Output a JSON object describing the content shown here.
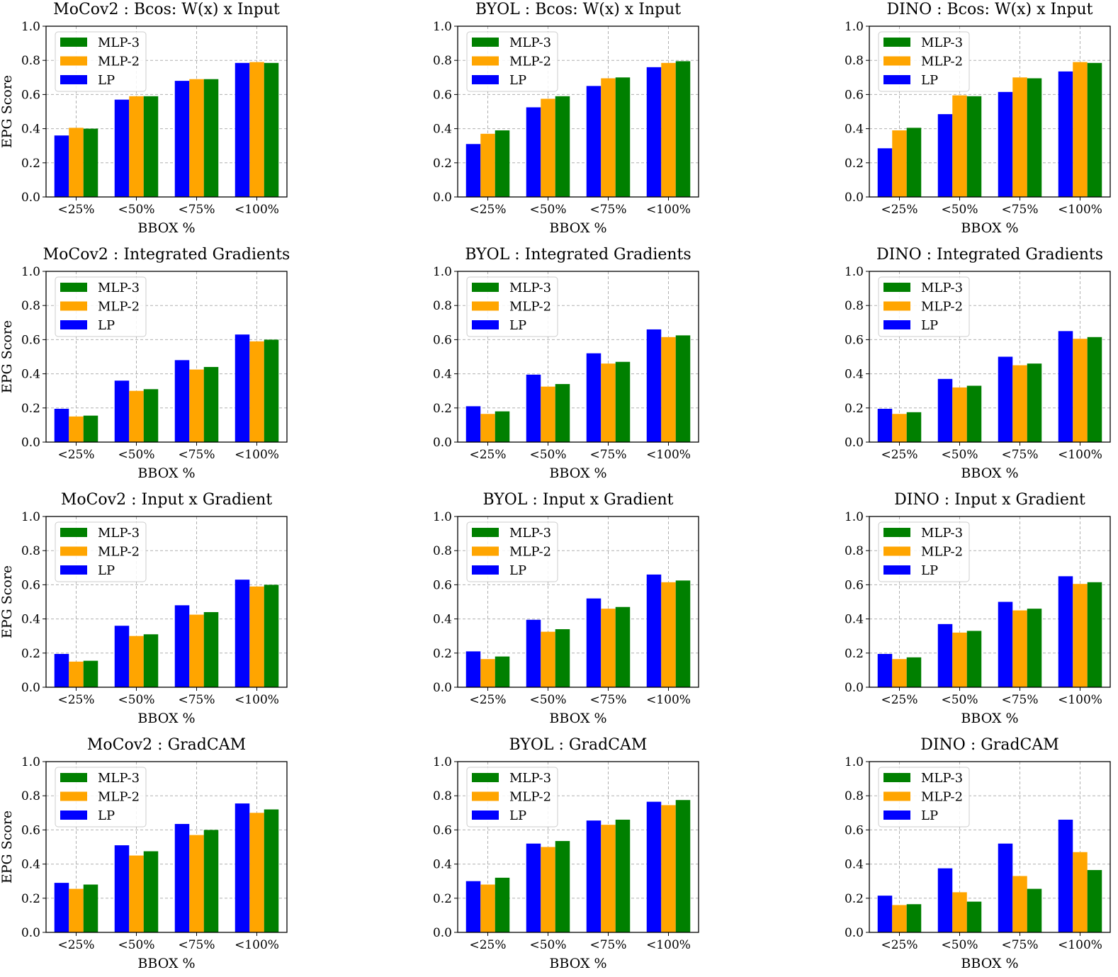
{
  "colors": {
    "LP": "#0000ff",
    "MLP-2": "#ffa500",
    "MLP-3": "#008000"
  },
  "chart_data": [
    {
      "type": "bar",
      "title": "MoCov2 : Bcos: W(x) x Input",
      "xlabel": "BBOX %",
      "ylabel": "EPG Score",
      "ylim": [
        0,
        1.0
      ],
      "grid": true,
      "legend_position": "upper-left",
      "categories": [
        "<25%",
        "<50%",
        "<75%",
        "<100%"
      ],
      "yticks": [
        "0.0",
        "0.2",
        "0.4",
        "0.6",
        "0.8",
        "1.0"
      ],
      "legend": [
        "MLP-3",
        "MLP-2",
        "LP"
      ],
      "series": [
        {
          "name": "LP",
          "values": [
            0.36,
            0.57,
            0.68,
            0.785
          ]
        },
        {
          "name": "MLP-2",
          "values": [
            0.405,
            0.59,
            0.69,
            0.79
          ]
        },
        {
          "name": "MLP-3",
          "values": [
            0.4,
            0.59,
            0.69,
            0.785
          ]
        }
      ]
    },
    {
      "type": "bar",
      "title": "BYOL : Bcos: W(x) x Input",
      "xlabel": "BBOX %",
      "ylabel": "",
      "ylim": [
        0,
        1.0
      ],
      "grid": true,
      "legend_position": "upper-left",
      "categories": [
        "<25%",
        "<50%",
        "<75%",
        "<100%"
      ],
      "yticks": [
        "0.0",
        "0.2",
        "0.4",
        "0.6",
        "0.8",
        "1.0"
      ],
      "legend": [
        "MLP-3",
        "MLP-2",
        "LP"
      ],
      "series": [
        {
          "name": "LP",
          "values": [
            0.31,
            0.525,
            0.65,
            0.76
          ]
        },
        {
          "name": "MLP-2",
          "values": [
            0.37,
            0.575,
            0.695,
            0.785
          ]
        },
        {
          "name": "MLP-3",
          "values": [
            0.39,
            0.59,
            0.7,
            0.795
          ]
        }
      ]
    },
    {
      "type": "bar",
      "title": "DINO : Bcos: W(x) x Input",
      "xlabel": "BBOX %",
      "ylabel": "",
      "ylim": [
        0,
        1.0
      ],
      "grid": true,
      "legend_position": "upper-left",
      "categories": [
        "<25%",
        "<50%",
        "<75%",
        "<100%"
      ],
      "yticks": [
        "0.0",
        "0.2",
        "0.4",
        "0.6",
        "0.8",
        "1.0"
      ],
      "legend": [
        "MLP-3",
        "MLP-2",
        "LP"
      ],
      "series": [
        {
          "name": "LP",
          "values": [
            0.285,
            0.485,
            0.615,
            0.735
          ]
        },
        {
          "name": "MLP-2",
          "values": [
            0.39,
            0.595,
            0.7,
            0.79
          ]
        },
        {
          "name": "MLP-3",
          "values": [
            0.405,
            0.59,
            0.695,
            0.785
          ]
        }
      ]
    },
    {
      "type": "bar",
      "title": "MoCov2 : Integrated Gradients",
      "xlabel": "BBOX %",
      "ylabel": "EPG Score",
      "ylim": [
        0,
        1.0
      ],
      "grid": true,
      "legend_position": "upper-left",
      "categories": [
        "<25%",
        "<50%",
        "<75%",
        "<100%"
      ],
      "yticks": [
        "0.0",
        "0.2",
        "0.4",
        "0.6",
        "0.8",
        "1.0"
      ],
      "legend": [
        "MLP-3",
        "MLP-2",
        "LP"
      ],
      "series": [
        {
          "name": "LP",
          "values": [
            0.195,
            0.36,
            0.48,
            0.63
          ]
        },
        {
          "name": "MLP-2",
          "values": [
            0.15,
            0.3,
            0.425,
            0.59
          ]
        },
        {
          "name": "MLP-3",
          "values": [
            0.155,
            0.31,
            0.44,
            0.6
          ]
        }
      ]
    },
    {
      "type": "bar",
      "title": "BYOL : Integrated Gradients",
      "xlabel": "BBOX %",
      "ylabel": "",
      "ylim": [
        0,
        1.0
      ],
      "grid": true,
      "legend_position": "upper-left",
      "categories": [
        "<25%",
        "<50%",
        "<75%",
        "<100%"
      ],
      "yticks": [
        "0.0",
        "0.2",
        "0.4",
        "0.6",
        "0.8",
        "1.0"
      ],
      "legend": [
        "MLP-3",
        "MLP-2",
        "LP"
      ],
      "series": [
        {
          "name": "LP",
          "values": [
            0.21,
            0.395,
            0.52,
            0.66
          ]
        },
        {
          "name": "MLP-2",
          "values": [
            0.165,
            0.325,
            0.46,
            0.615
          ]
        },
        {
          "name": "MLP-3",
          "values": [
            0.18,
            0.34,
            0.47,
            0.625
          ]
        }
      ]
    },
    {
      "type": "bar",
      "title": "DINO : Integrated Gradients",
      "xlabel": "BBOX %",
      "ylabel": "",
      "ylim": [
        0,
        1.0
      ],
      "grid": true,
      "legend_position": "upper-left",
      "categories": [
        "<25%",
        "<50%",
        "<75%",
        "<100%"
      ],
      "yticks": [
        "0.0",
        "0.2",
        "0.4",
        "0.6",
        "0.8",
        "1.0"
      ],
      "legend": [
        "MLP-3",
        "MLP-2",
        "LP"
      ],
      "series": [
        {
          "name": "LP",
          "values": [
            0.195,
            0.37,
            0.5,
            0.65
          ]
        },
        {
          "name": "MLP-2",
          "values": [
            0.165,
            0.32,
            0.45,
            0.605
          ]
        },
        {
          "name": "MLP-3",
          "values": [
            0.175,
            0.33,
            0.46,
            0.615
          ]
        }
      ]
    },
    {
      "type": "bar",
      "title": "MoCov2 : Input x Gradient",
      "xlabel": "BBOX %",
      "ylabel": "EPG Score",
      "ylim": [
        0,
        1.0
      ],
      "grid": true,
      "legend_position": "upper-left",
      "categories": [
        "<25%",
        "<50%",
        "<75%",
        "<100%"
      ],
      "yticks": [
        "0.0",
        "0.2",
        "0.4",
        "0.6",
        "0.8",
        "1.0"
      ],
      "legend": [
        "MLP-3",
        "MLP-2",
        "LP"
      ],
      "series": [
        {
          "name": "LP",
          "values": [
            0.195,
            0.36,
            0.48,
            0.63
          ]
        },
        {
          "name": "MLP-2",
          "values": [
            0.15,
            0.3,
            0.425,
            0.59
          ]
        },
        {
          "name": "MLP-3",
          "values": [
            0.155,
            0.31,
            0.44,
            0.6
          ]
        }
      ]
    },
    {
      "type": "bar",
      "title": "BYOL : Input x Gradient",
      "xlabel": "BBOX %",
      "ylabel": "",
      "ylim": [
        0,
        1.0
      ],
      "grid": true,
      "legend_position": "upper-left",
      "categories": [
        "<25%",
        "<50%",
        "<75%",
        "<100%"
      ],
      "yticks": [
        "0.0",
        "0.2",
        "0.4",
        "0.6",
        "0.8",
        "1.0"
      ],
      "legend": [
        "MLP-3",
        "MLP-2",
        "LP"
      ],
      "series": [
        {
          "name": "LP",
          "values": [
            0.21,
            0.395,
            0.52,
            0.66
          ]
        },
        {
          "name": "MLP-2",
          "values": [
            0.165,
            0.325,
            0.46,
            0.615
          ]
        },
        {
          "name": "MLP-3",
          "values": [
            0.18,
            0.34,
            0.47,
            0.625
          ]
        }
      ]
    },
    {
      "type": "bar",
      "title": "DINO : Input x Gradient",
      "xlabel": "BBOX %",
      "ylabel": "",
      "ylim": [
        0,
        1.0
      ],
      "grid": true,
      "legend_position": "upper-left",
      "categories": [
        "<25%",
        "<50%",
        "<75%",
        "<100%"
      ],
      "yticks": [
        "0.0",
        "0.2",
        "0.4",
        "0.6",
        "0.8",
        "1.0"
      ],
      "legend": [
        "MLP-3",
        "MLP-2",
        "LP"
      ],
      "series": [
        {
          "name": "LP",
          "values": [
            0.195,
            0.37,
            0.5,
            0.65
          ]
        },
        {
          "name": "MLP-2",
          "values": [
            0.165,
            0.32,
            0.45,
            0.605
          ]
        },
        {
          "name": "MLP-3",
          "values": [
            0.175,
            0.33,
            0.46,
            0.615
          ]
        }
      ]
    },
    {
      "type": "bar",
      "title": "MoCov2 : GradCAM",
      "xlabel": "BBOX %",
      "ylabel": "EPG Score",
      "ylim": [
        0,
        1.0
      ],
      "grid": true,
      "legend_position": "upper-left",
      "categories": [
        "<25%",
        "<50%",
        "<75%",
        "<100%"
      ],
      "yticks": [
        "0.0",
        "0.2",
        "0.4",
        "0.6",
        "0.8",
        "1.0"
      ],
      "legend": [
        "MLP-3",
        "MLP-2",
        "LP"
      ],
      "series": [
        {
          "name": "LP",
          "values": [
            0.29,
            0.51,
            0.635,
            0.755
          ]
        },
        {
          "name": "MLP-2",
          "values": [
            0.255,
            0.45,
            0.57,
            0.7
          ]
        },
        {
          "name": "MLP-3",
          "values": [
            0.28,
            0.475,
            0.6,
            0.72
          ]
        }
      ]
    },
    {
      "type": "bar",
      "title": "BYOL : GradCAM",
      "xlabel": "BBOX %",
      "ylabel": "",
      "ylim": [
        0,
        1.0
      ],
      "grid": true,
      "legend_position": "upper-left",
      "categories": [
        "<25%",
        "<50%",
        "<75%",
        "<100%"
      ],
      "yticks": [
        "0.0",
        "0.2",
        "0.4",
        "0.6",
        "0.8",
        "1.0"
      ],
      "legend": [
        "MLP-3",
        "MLP-2",
        "LP"
      ],
      "series": [
        {
          "name": "LP",
          "values": [
            0.3,
            0.52,
            0.655,
            0.765
          ]
        },
        {
          "name": "MLP-2",
          "values": [
            0.28,
            0.5,
            0.63,
            0.745
          ]
        },
        {
          "name": "MLP-3",
          "values": [
            0.32,
            0.535,
            0.66,
            0.775
          ]
        }
      ]
    },
    {
      "type": "bar",
      "title": "DINO : GradCAM",
      "xlabel": "BBOX %",
      "ylabel": "",
      "ylim": [
        0,
        1.0
      ],
      "grid": true,
      "legend_position": "upper-left",
      "categories": [
        "<25%",
        "<50%",
        "<75%",
        "<100%"
      ],
      "yticks": [
        "0.0",
        "0.2",
        "0.4",
        "0.6",
        "0.8",
        "1.0"
      ],
      "legend": [
        "MLP-3",
        "MLP-2",
        "LP"
      ],
      "series": [
        {
          "name": "LP",
          "values": [
            0.215,
            0.375,
            0.52,
            0.66
          ]
        },
        {
          "name": "MLP-2",
          "values": [
            0.16,
            0.235,
            0.33,
            0.47
          ]
        },
        {
          "name": "MLP-3",
          "values": [
            0.165,
            0.18,
            0.255,
            0.365
          ]
        }
      ]
    }
  ]
}
